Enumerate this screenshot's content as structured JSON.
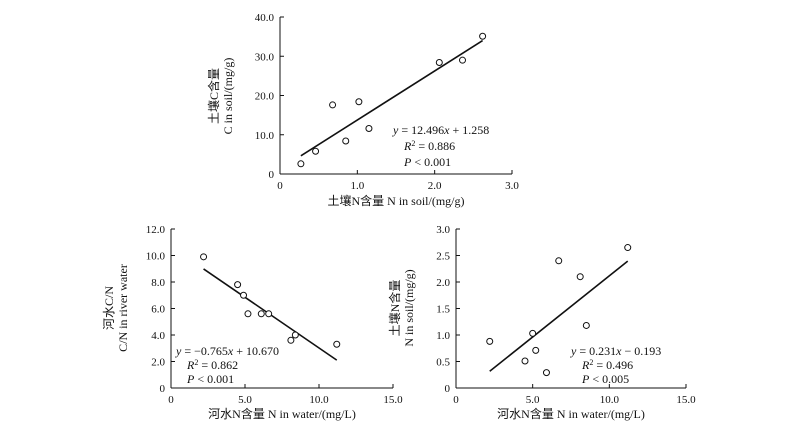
{
  "chart_data": [
    {
      "id": "top",
      "type": "scatter",
      "xlabel": "土壤N含量 N in soil/(mg/g)",
      "ylabel_lines": [
        "土壤C含量",
        "C in soil/(mg/g)"
      ],
      "xlim": [
        0,
        3.0
      ],
      "ylim": [
        0,
        40.0
      ],
      "x_ticks": [
        0,
        1.0,
        2.0,
        3.0
      ],
      "x_tick_labels": [
        "0",
        "1.0",
        "2.0",
        "3.0"
      ],
      "y_ticks": [
        0,
        10,
        20,
        30,
        40
      ],
      "y_tick_labels": [
        "0",
        "10.0",
        "20.0",
        "30.0",
        "40.0"
      ],
      "points": [
        {
          "x": 0.27,
          "y": 2.6
        },
        {
          "x": 0.46,
          "y": 5.8
        },
        {
          "x": 0.68,
          "y": 17.6
        },
        {
          "x": 0.85,
          "y": 8.4
        },
        {
          "x": 1.02,
          "y": 18.4
        },
        {
          "x": 1.15,
          "y": 11.6
        },
        {
          "x": 2.06,
          "y": 28.4
        },
        {
          "x": 2.36,
          "y": 29.0
        },
        {
          "x": 2.62,
          "y": 35.1
        }
      ],
      "fit": {
        "slope": 12.496,
        "intercept": 1.258,
        "x_range": [
          0.27,
          2.62
        ]
      },
      "annotation": {
        "equation": "= 12.496",
        "equation_tail": " + 1.258",
        "r2": " = 0.886",
        "p": " < 0.001"
      }
    },
    {
      "id": "bottom-left",
      "type": "scatter",
      "xlabel": "河水N含量 N in water/(mg/L)",
      "ylabel_lines": [
        "河水C/N",
        "C/N in river water"
      ],
      "xlim": [
        0,
        15.0
      ],
      "ylim": [
        0,
        12.0
      ],
      "x_ticks": [
        0,
        5,
        10,
        15
      ],
      "x_tick_labels": [
        "0",
        "5.0",
        "10.0",
        "15.0"
      ],
      "y_ticks": [
        0,
        2,
        4,
        6,
        8,
        10,
        12
      ],
      "y_tick_labels": [
        "0",
        "2.0",
        "4.0",
        "6.0",
        "8.0",
        "10.0",
        "12.0"
      ],
      "points": [
        {
          "x": 2.2,
          "y": 9.9
        },
        {
          "x": 4.5,
          "y": 7.8
        },
        {
          "x": 4.9,
          "y": 7.0
        },
        {
          "x": 5.2,
          "y": 5.6
        },
        {
          "x": 6.1,
          "y": 5.6
        },
        {
          "x": 6.6,
          "y": 5.6
        },
        {
          "x": 8.1,
          "y": 3.6
        },
        {
          "x": 8.4,
          "y": 4.0
        },
        {
          "x": 11.2,
          "y": 3.3
        }
      ],
      "fit": {
        "slope": -0.765,
        "intercept": 10.67,
        "x_range": [
          2.2,
          11.2
        ]
      },
      "annotation": {
        "equation": " = −0.765",
        "equation_tail": " + 10.670",
        "r2": " = 0.862",
        "p": " < 0.001"
      }
    },
    {
      "id": "bottom-right",
      "type": "scatter",
      "xlabel": "河水N含量 N in water/(mg/L)",
      "ylabel_lines": [
        "土壤N含量",
        "N in soil/(mg/g)"
      ],
      "xlim": [
        0,
        15.0
      ],
      "ylim": [
        0,
        3.0
      ],
      "x_ticks": [
        0,
        5,
        10,
        15
      ],
      "x_tick_labels": [
        "0",
        "5.0",
        "10.0",
        "15.0"
      ],
      "y_ticks": [
        0,
        0.5,
        1.0,
        1.5,
        2.0,
        2.5,
        3.0
      ],
      "y_tick_labels": [
        "0",
        "0.5",
        "1.0",
        "1.5",
        "2.0",
        "2.5",
        "3.0"
      ],
      "points": [
        {
          "x": 2.2,
          "y": 0.88
        },
        {
          "x": 4.5,
          "y": 0.51
        },
        {
          "x": 5.0,
          "y": 1.03
        },
        {
          "x": 5.2,
          "y": 0.71
        },
        {
          "x": 5.9,
          "y": 0.29
        },
        {
          "x": 6.7,
          "y": 2.4
        },
        {
          "x": 8.1,
          "y": 2.1
        },
        {
          "x": 8.5,
          "y": 1.18
        },
        {
          "x": 11.2,
          "y": 2.65
        }
      ],
      "fit": {
        "slope": 0.231,
        "intercept": -0.193,
        "x_range": [
          2.2,
          11.2
        ]
      },
      "annotation": {
        "equation": " = 0.231",
        "equation_tail": " − 0.193",
        "r2": " = 0.496",
        "p": " < 0.005"
      }
    }
  ]
}
